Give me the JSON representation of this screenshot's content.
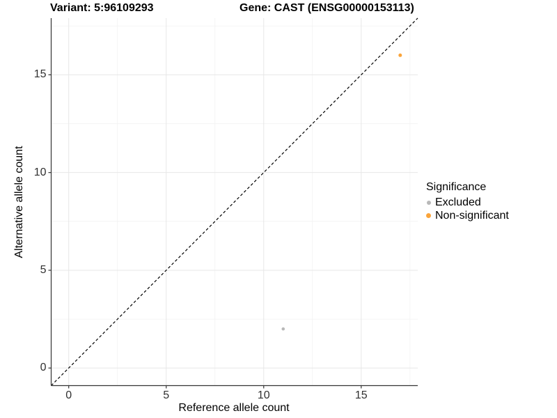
{
  "titles": {
    "variant": "Variant: 5:96109293",
    "gene": "Gene: CAST (ENSG00000153113)"
  },
  "chart_data": {
    "type": "scatter",
    "xlabel": "Reference allele count",
    "ylabel": "Alternative allele count",
    "xlim": [
      -0.9,
      17.9
    ],
    "ylim": [
      -0.9,
      17.9
    ],
    "x_ticks": [
      0,
      5,
      10,
      15
    ],
    "y_ticks": [
      0,
      5,
      10,
      15
    ],
    "minor_ticks": [
      2.5,
      7.5,
      12.5,
      17.5
    ],
    "grid": true,
    "identity_line": {
      "style": "dashed",
      "color": "#000000"
    },
    "series": [
      {
        "name": "Excluded",
        "color": "#B8B8B8",
        "marker_radius": 2.3,
        "points": [
          {
            "x": 11,
            "y": 2
          }
        ]
      },
      {
        "name": "Non-significant",
        "color": "#FAA43A",
        "marker_radius": 2.5,
        "points": [
          {
            "x": 17,
            "y": 16
          }
        ]
      }
    ],
    "legend": {
      "title": "Significance",
      "position": "right"
    },
    "colors": {
      "grid_major": "#E7E7E7",
      "grid_minor": "#F2F2F2",
      "axis": "#333333"
    }
  }
}
